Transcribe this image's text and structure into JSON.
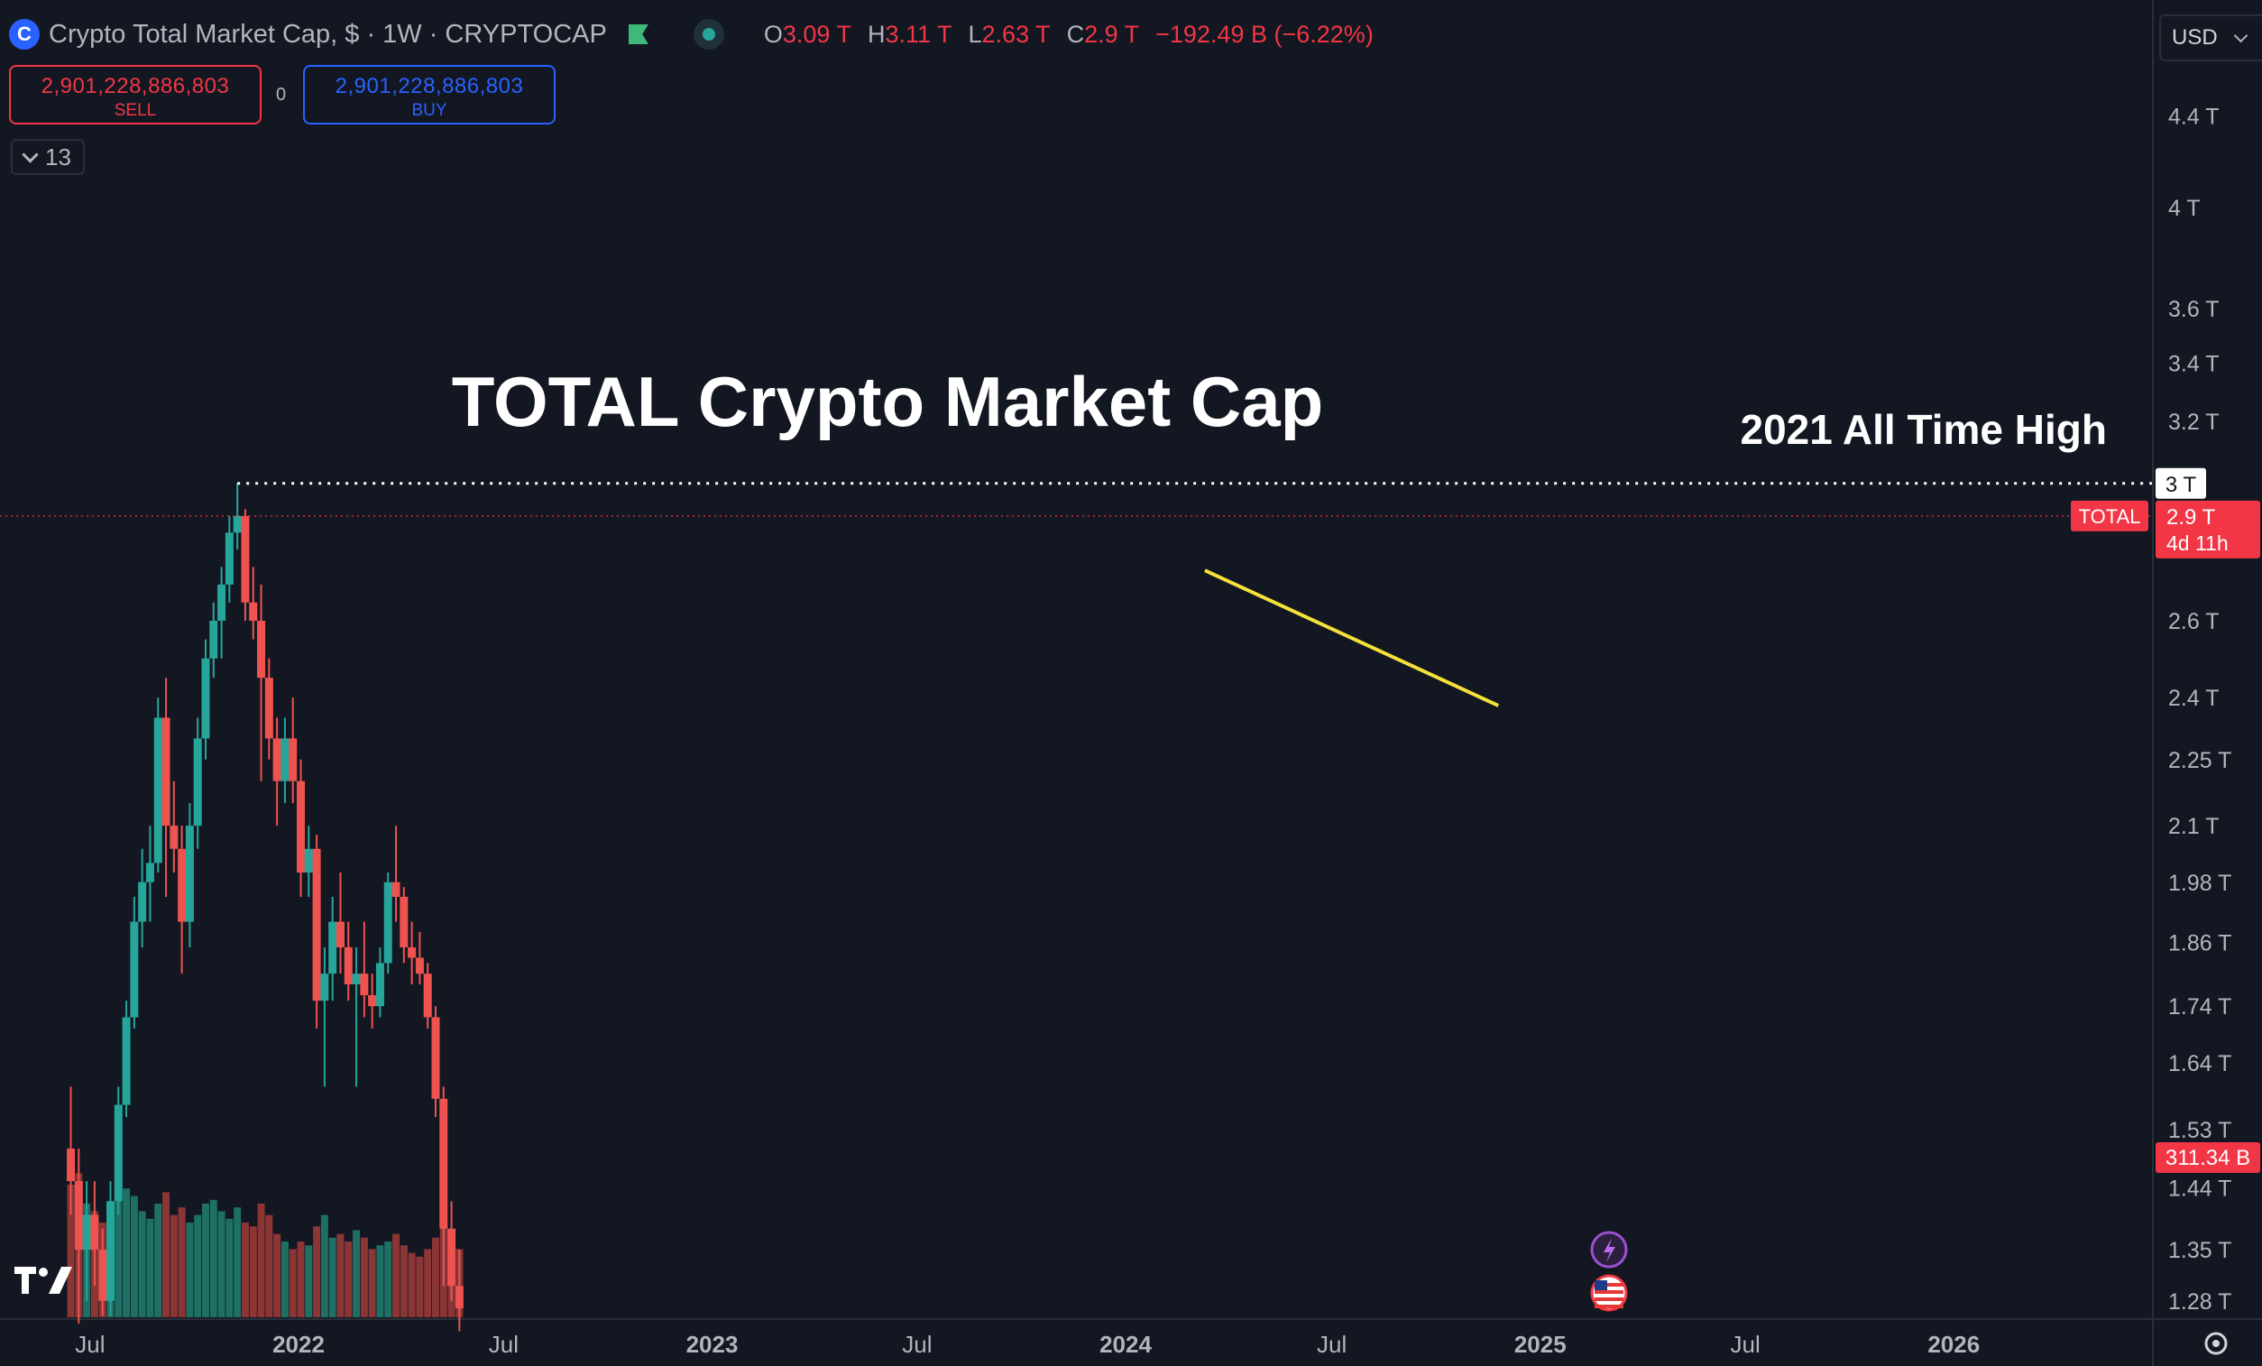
{
  "header": {
    "symbol_icon": "coin-logo-icon",
    "title": "Crypto Total Market Cap, $ · 1W · CRYPTOCAP",
    "ohlc": [
      {
        "k": "O",
        "v": "3.09 T"
      },
      {
        "k": "H",
        "v": "3.11 T"
      },
      {
        "k": "L",
        "v": "2.63 T"
      },
      {
        "k": "C",
        "v": "2.9 T"
      },
      {
        "k": "",
        "v": "−192.49 B (−6.22%)"
      }
    ]
  },
  "trade": {
    "sell_price": "2,901,228,886,803",
    "sell_label": "SELL",
    "spread": "0",
    "buy_price": "2,901,228,886,803",
    "buy_label": "BUY"
  },
  "indicators_toggle": {
    "count": "13"
  },
  "currency": {
    "value": "USD"
  },
  "colors": {
    "background": "#131722",
    "up": "#26a69a",
    "down": "#ef5350",
    "up_volume": "#1e6f64",
    "down_volume": "#8b3535",
    "trendline": "#f5e13a",
    "ath_line": "#ffffff",
    "price_label": "#f23645"
  },
  "chart_data": {
    "type": "candlestick",
    "interval": "1W",
    "y_scale": "log",
    "y_ticks": [
      {
        "value": 4.4,
        "label": "4.4 T"
      },
      {
        "value": 4.0,
        "label": "4 T"
      },
      {
        "value": 3.6,
        "label": "3.6 T"
      },
      {
        "value": 3.4,
        "label": "3.4 T"
      },
      {
        "value": 3.2,
        "label": "3.2 T"
      },
      {
        "value": 2.6,
        "label": "2.6 T"
      },
      {
        "value": 2.4,
        "label": "2.4 T"
      },
      {
        "value": 2.25,
        "label": "2.25 T"
      },
      {
        "value": 2.1,
        "label": "2.1 T"
      },
      {
        "value": 1.98,
        "label": "1.98 T"
      },
      {
        "value": 1.86,
        "label": "1.86 T"
      },
      {
        "value": 1.74,
        "label": "1.74 T"
      },
      {
        "value": 1.64,
        "label": "1.64 T"
      },
      {
        "value": 1.53,
        "label": "1.53 T"
      },
      {
        "value": 1.44,
        "label": "1.44 T"
      },
      {
        "value": 1.35,
        "label": "1.35 T"
      },
      {
        "value": 1.28,
        "label": "1.28 T"
      }
    ],
    "x_ticks": [
      {
        "date": "2021-07-01",
        "label": "Jul",
        "bold": false
      },
      {
        "date": "2022-01-01",
        "label": "2022",
        "bold": true
      },
      {
        "date": "2022-07-01",
        "label": "Jul",
        "bold": false
      },
      {
        "date": "2023-01-01",
        "label": "2023",
        "bold": true
      },
      {
        "date": "2023-07-01",
        "label": "Jul",
        "bold": false
      },
      {
        "date": "2024-01-01",
        "label": "2024",
        "bold": true
      },
      {
        "date": "2024-07-01",
        "label": "Jul",
        "bold": false
      },
      {
        "date": "2025-01-01",
        "label": "2025",
        "bold": true
      },
      {
        "date": "2025-07-01",
        "label": "Jul",
        "bold": false
      },
      {
        "date": "2026-01-01",
        "label": "2026",
        "bold": true
      }
    ],
    "annotations": {
      "title": "TOTAL Crypto Market Cap",
      "ath_label": "2021 All Time High",
      "ath_value": 3.0,
      "ath_axis_label": "3 T",
      "ath_start": "2021-11-08",
      "trendline": {
        "start": "2024-03-11",
        "start_value": 2.74,
        "end": "2024-11-25",
        "end_value": 2.38
      }
    },
    "last_price": {
      "series": "TOTAL",
      "value": 2.9,
      "label": "2.9 T",
      "countdown": "4d 11h"
    },
    "last_volume": {
      "label": "311.34 B"
    },
    "candles": [
      {
        "d": "2021-06-14",
        "o": 1.5,
        "h": 1.6,
        "l": 1.4,
        "c": 1.45
      },
      {
        "d": "2021-06-21",
        "o": 1.45,
        "h": 1.5,
        "l": 1.25,
        "c": 1.35
      },
      {
        "d": "2021-06-28",
        "o": 1.35,
        "h": 1.45,
        "l": 1.28,
        "c": 1.4
      },
      {
        "d": "2021-07-05",
        "o": 1.4,
        "h": 1.45,
        "l": 1.3,
        "c": 1.35
      },
      {
        "d": "2021-07-12",
        "o": 1.35,
        "h": 1.38,
        "l": 1.26,
        "c": 1.28
      },
      {
        "d": "2021-07-19",
        "o": 1.28,
        "h": 1.45,
        "l": 1.26,
        "c": 1.42
      },
      {
        "d": "2021-07-26",
        "o": 1.42,
        "h": 1.6,
        "l": 1.4,
        "c": 1.57
      },
      {
        "d": "2021-08-02",
        "o": 1.57,
        "h": 1.75,
        "l": 1.55,
        "c": 1.72
      },
      {
        "d": "2021-08-09",
        "o": 1.72,
        "h": 1.95,
        "l": 1.7,
        "c": 1.9
      },
      {
        "d": "2021-08-16",
        "o": 1.9,
        "h": 2.05,
        "l": 1.85,
        "c": 1.98
      },
      {
        "d": "2021-08-23",
        "o": 1.98,
        "h": 2.1,
        "l": 1.9,
        "c": 2.02
      },
      {
        "d": "2021-08-30",
        "o": 2.02,
        "h": 2.4,
        "l": 2.0,
        "c": 2.35
      },
      {
        "d": "2021-09-06",
        "o": 2.35,
        "h": 2.45,
        "l": 1.95,
        "c": 2.1
      },
      {
        "d": "2021-09-13",
        "o": 2.1,
        "h": 2.2,
        "l": 2.0,
        "c": 2.05
      },
      {
        "d": "2021-09-20",
        "o": 2.05,
        "h": 2.1,
        "l": 1.8,
        "c": 1.9
      },
      {
        "d": "2021-09-27",
        "o": 1.9,
        "h": 2.15,
        "l": 1.85,
        "c": 2.1
      },
      {
        "d": "2021-10-04",
        "o": 2.1,
        "h": 2.35,
        "l": 2.05,
        "c": 2.3
      },
      {
        "d": "2021-10-11",
        "o": 2.3,
        "h": 2.55,
        "l": 2.25,
        "c": 2.5
      },
      {
        "d": "2021-10-18",
        "o": 2.5,
        "h": 2.65,
        "l": 2.45,
        "c": 2.6
      },
      {
        "d": "2021-10-25",
        "o": 2.6,
        "h": 2.75,
        "l": 2.5,
        "c": 2.7
      },
      {
        "d": "2021-11-01",
        "o": 2.7,
        "h": 2.9,
        "l": 2.65,
        "c": 2.85
      },
      {
        "d": "2021-11-08",
        "o": 2.85,
        "h": 3.0,
        "l": 2.8,
        "c": 2.9
      },
      {
        "d": "2021-11-15",
        "o": 2.9,
        "h": 2.92,
        "l": 2.6,
        "c": 2.65
      },
      {
        "d": "2021-11-22",
        "o": 2.65,
        "h": 2.75,
        "l": 2.55,
        "c": 2.6
      },
      {
        "d": "2021-11-29",
        "o": 2.6,
        "h": 2.7,
        "l": 2.2,
        "c": 2.45
      },
      {
        "d": "2021-12-06",
        "o": 2.45,
        "h": 2.5,
        "l": 2.25,
        "c": 2.3
      },
      {
        "d": "2021-12-13",
        "o": 2.3,
        "h": 2.35,
        "l": 2.1,
        "c": 2.2
      },
      {
        "d": "2021-12-20",
        "o": 2.2,
        "h": 2.35,
        "l": 2.15,
        "c": 2.3
      },
      {
        "d": "2021-12-27",
        "o": 2.3,
        "h": 2.4,
        "l": 2.15,
        "c": 2.2
      },
      {
        "d": "2022-01-03",
        "o": 2.2,
        "h": 2.25,
        "l": 1.95,
        "c": 2.0
      },
      {
        "d": "2022-01-10",
        "o": 2.0,
        "h": 2.1,
        "l": 1.95,
        "c": 2.05
      },
      {
        "d": "2022-01-17",
        "o": 2.05,
        "h": 2.08,
        "l": 1.7,
        "c": 1.75
      },
      {
        "d": "2022-01-24",
        "o": 1.75,
        "h": 1.85,
        "l": 1.6,
        "c": 1.8
      },
      {
        "d": "2022-01-31",
        "o": 1.8,
        "h": 1.95,
        "l": 1.75,
        "c": 1.9
      },
      {
        "d": "2022-02-07",
        "o": 1.9,
        "h": 2.0,
        "l": 1.8,
        "c": 1.85
      },
      {
        "d": "2022-02-14",
        "o": 1.85,
        "h": 1.9,
        "l": 1.75,
        "c": 1.78
      },
      {
        "d": "2022-02-21",
        "o": 1.78,
        "h": 1.85,
        "l": 1.6,
        "c": 1.8
      },
      {
        "d": "2022-02-28",
        "o": 1.8,
        "h": 1.9,
        "l": 1.72,
        "c": 1.76
      },
      {
        "d": "2022-03-07",
        "o": 1.76,
        "h": 1.8,
        "l": 1.7,
        "c": 1.74
      },
      {
        "d": "2022-03-14",
        "o": 1.74,
        "h": 1.85,
        "l": 1.72,
        "c": 1.82
      },
      {
        "d": "2022-03-21",
        "o": 1.82,
        "h": 2.0,
        "l": 1.8,
        "c": 1.98
      },
      {
        "d": "2022-03-28",
        "o": 1.98,
        "h": 2.1,
        "l": 1.9,
        "c": 1.95
      },
      {
        "d": "2022-04-04",
        "o": 1.95,
        "h": 1.97,
        "l": 1.82,
        "c": 1.85
      },
      {
        "d": "2022-04-11",
        "o": 1.85,
        "h": 1.9,
        "l": 1.78,
        "c": 1.83
      },
      {
        "d": "2022-04-18",
        "o": 1.83,
        "h": 1.88,
        "l": 1.78,
        "c": 1.8
      },
      {
        "d": "2022-04-25",
        "o": 1.8,
        "h": 1.82,
        "l": 1.7,
        "c": 1.72
      },
      {
        "d": "2022-05-02",
        "o": 1.72,
        "h": 1.74,
        "l": 1.55,
        "c": 1.58
      },
      {
        "d": "2022-05-09",
        "o": 1.58,
        "h": 1.6,
        "l": 1.3,
        "c": 1.38
      },
      {
        "d": "2022-05-16",
        "o": 1.38,
        "h": 1.42,
        "l": 1.28,
        "c": 1.3
      },
      {
        "d": "2022-05-23",
        "o": 1.3,
        "h": 1.35,
        "l": 1.24,
        "c": 1.27
      }
    ],
    "volume": {
      "scale": "relative",
      "max": 1.0,
      "bars": [
        {
          "d": "2021-06-14",
          "v": 0.35
        },
        {
          "d": "2021-06-21",
          "v": 0.38
        },
        {
          "d": "2021-06-28",
          "v": 0.3
        },
        {
          "d": "2021-07-05",
          "v": 0.28
        },
        {
          "d": "2021-07-12",
          "v": 0.25
        },
        {
          "d": "2021-07-19",
          "v": 0.3
        },
        {
          "d": "2021-07-26",
          "v": 0.36
        },
        {
          "d": "2021-08-02",
          "v": 0.34
        },
        {
          "d": "2021-08-09",
          "v": 0.32
        },
        {
          "d": "2021-08-16",
          "v": 0.28
        },
        {
          "d": "2021-08-23",
          "v": 0.26
        },
        {
          "d": "2021-08-30",
          "v": 0.3
        },
        {
          "d": "2021-09-06",
          "v": 0.33
        },
        {
          "d": "2021-09-13",
          "v": 0.27
        },
        {
          "d": "2021-09-20",
          "v": 0.29
        },
        {
          "d": "2021-09-27",
          "v": 0.25
        },
        {
          "d": "2021-10-04",
          "v": 0.27
        },
        {
          "d": "2021-10-11",
          "v": 0.3
        },
        {
          "d": "2021-10-18",
          "v": 0.31
        },
        {
          "d": "2021-10-25",
          "v": 0.28
        },
        {
          "d": "2021-11-01",
          "v": 0.26
        },
        {
          "d": "2021-11-08",
          "v": 0.29
        },
        {
          "d": "2021-11-15",
          "v": 0.25
        },
        {
          "d": "2021-11-22",
          "v": 0.24
        },
        {
          "d": "2021-11-29",
          "v": 0.3
        },
        {
          "d": "2021-12-06",
          "v": 0.27
        },
        {
          "d": "2021-12-13",
          "v": 0.22
        },
        {
          "d": "2021-12-20",
          "v": 0.2
        },
        {
          "d": "2021-12-27",
          "v": 0.18
        },
        {
          "d": "2022-01-03",
          "v": 0.2
        },
        {
          "d": "2022-01-10",
          "v": 0.19
        },
        {
          "d": "2022-01-17",
          "v": 0.24
        },
        {
          "d": "2022-01-24",
          "v": 0.27
        },
        {
          "d": "2022-01-31",
          "v": 0.21
        },
        {
          "d": "2022-02-07",
          "v": 0.22
        },
        {
          "d": "2022-02-14",
          "v": 0.2
        },
        {
          "d": "2022-02-21",
          "v": 0.23
        },
        {
          "d": "2022-02-28",
          "v": 0.21
        },
        {
          "d": "2022-03-07",
          "v": 0.18
        },
        {
          "d": "2022-03-14",
          "v": 0.19
        },
        {
          "d": "2022-03-21",
          "v": 0.2
        },
        {
          "d": "2022-03-28",
          "v": 0.22
        },
        {
          "d": "2022-04-04",
          "v": 0.19
        },
        {
          "d": "2022-04-11",
          "v": 0.17
        },
        {
          "d": "2022-04-18",
          "v": 0.16
        },
        {
          "d": "2022-04-25",
          "v": 0.18
        },
        {
          "d": "2022-05-02",
          "v": 0.21
        },
        {
          "d": "2022-05-09",
          "v": 0.32
        },
        {
          "d": "2022-05-16",
          "v": 0.22
        },
        {
          "d": "2022-05-23",
          "v": 0.18
        }
      ]
    }
  },
  "bottom_icons": [
    "tradingview-logo-icon",
    "lightning-event-icon",
    "us-flag-event-icon",
    "settings-icon"
  ]
}
